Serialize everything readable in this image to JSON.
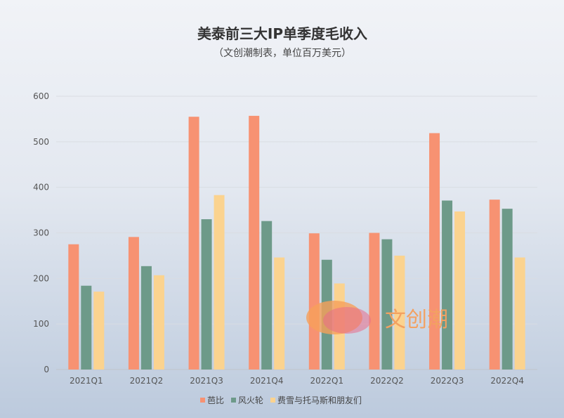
{
  "chart_data": {
    "type": "bar",
    "title": "美泰前三大IP单季度毛收入",
    "subtitle": "（文创潮制表，单位百万美元）",
    "categories": [
      "2021Q1",
      "2021Q2",
      "2021Q3",
      "2021Q4",
      "2022Q1",
      "2022Q2",
      "2022Q3",
      "2022Q4"
    ],
    "series": [
      {
        "name": "芭比",
        "color": "#f79272",
        "values": [
          275,
          291,
          555,
          557,
          299,
          300,
          519,
          373
        ]
      },
      {
        "name": "风火轮",
        "color": "#6d9a89",
        "values": [
          184,
          227,
          330,
          326,
          241,
          286,
          371,
          353
        ]
      },
      {
        "name": "费雪与托马斯和朋友们",
        "color": "#fbd38f",
        "values": [
          171,
          207,
          383,
          246,
          189,
          250,
          347,
          246
        ]
      }
    ],
    "ylim": [
      0,
      600
    ],
    "yticks": [
      0,
      100,
      200,
      300,
      400,
      500,
      600
    ],
    "grid": true,
    "legend_position": "bottom"
  },
  "watermark": {
    "text": "文创潮"
  }
}
